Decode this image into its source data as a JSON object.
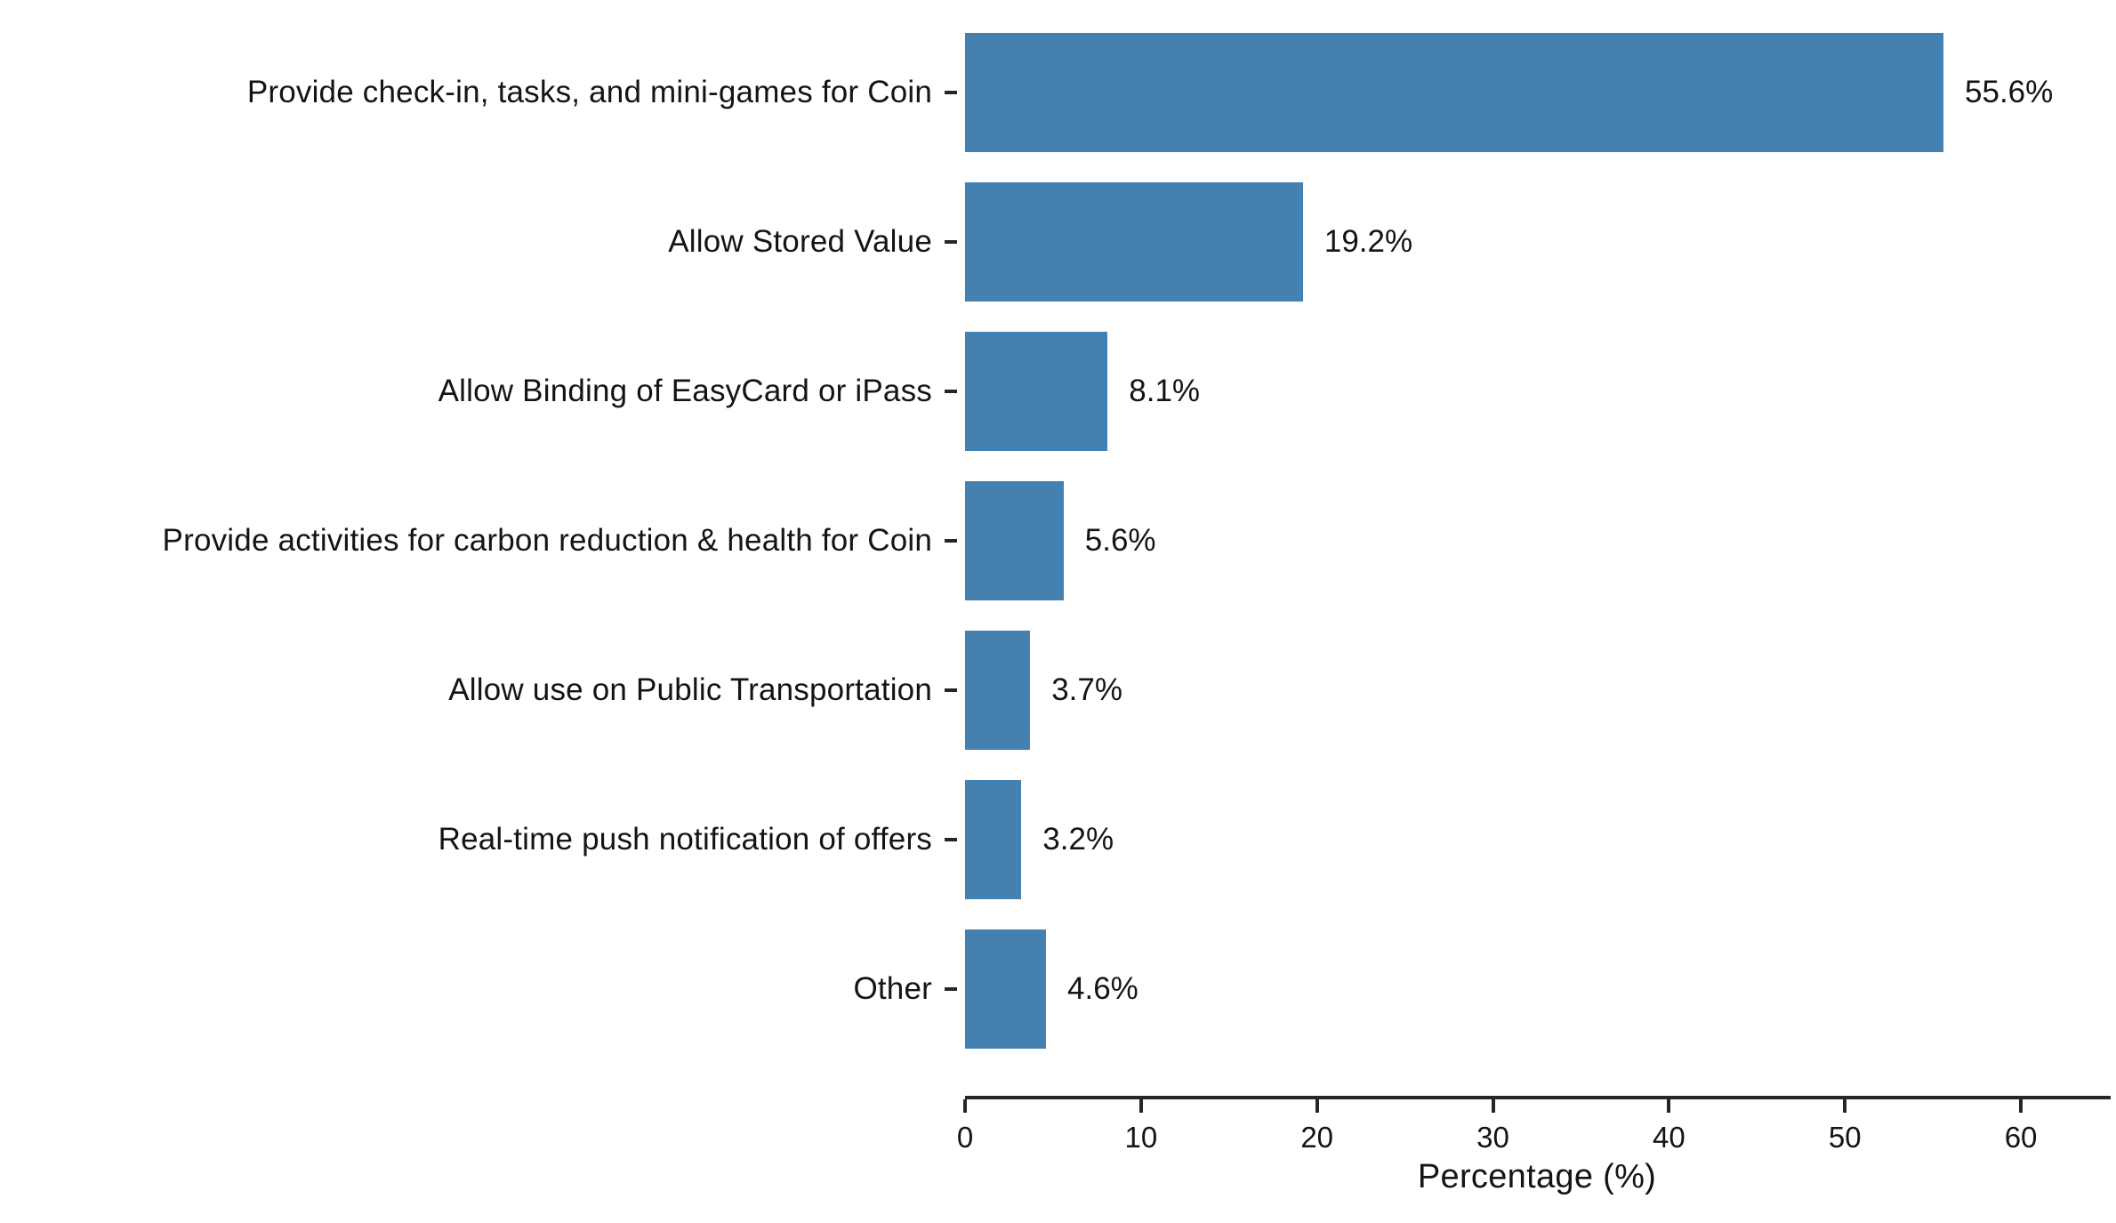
{
  "chart_data": {
    "type": "bar",
    "orientation": "horizontal",
    "title": "",
    "xlabel": "Percentage (%)",
    "ylabel": "",
    "categories": [
      "Provide check-in, tasks, and mini-games for Coin",
      "Allow Stored Value",
      "Allow Binding of EasyCard or iPass",
      "Provide activities for carbon reduction & health for Coin",
      "Allow use on Public Transportation",
      "Real-time push notification of offers",
      "Other"
    ],
    "values": [
      55.6,
      19.2,
      8.1,
      5.6,
      3.7,
      3.2,
      4.6
    ],
    "value_labels": [
      "55.6%",
      "19.2%",
      "8.1%",
      "5.6%",
      "3.7%",
      "3.2%",
      "4.6%"
    ],
    "xlim": [
      0,
      65
    ],
    "xticks": [
      0,
      10,
      20,
      30,
      40,
      50,
      60
    ],
    "bar_color": "#4480b0",
    "axis_color": "#262626",
    "grid": false,
    "legend": false
  }
}
